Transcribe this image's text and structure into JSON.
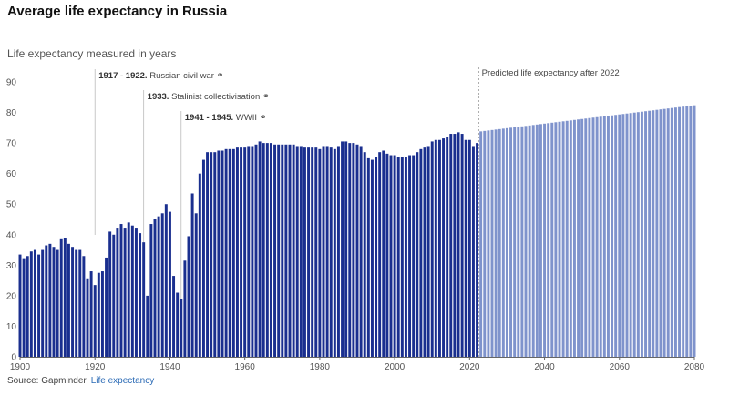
{
  "chart_data": {
    "type": "bar",
    "title": "Average life expectancy in Russia",
    "subtitle": "Life expectancy measured in years",
    "xlabel": "",
    "ylabel": "",
    "ylim": [
      0,
      90
    ],
    "xlim": [
      1900,
      2080
    ],
    "y_ticks": [
      0,
      10,
      20,
      30,
      40,
      50,
      60,
      70,
      80,
      90
    ],
    "x_ticks": [
      1900,
      1920,
      1940,
      1960,
      1980,
      2000,
      2020,
      2040,
      2060,
      2080
    ],
    "grid": false,
    "colors": {
      "historical": "#1a2f8f",
      "predicted": "#7f93cc",
      "guide": "#bbbbbb"
    },
    "series": [
      {
        "name": "",
        "x": [
          1900,
          1901,
          1902,
          1903,
          1904,
          1905,
          1906,
          1907,
          1908,
          1909,
          1910,
          1911,
          1912,
          1913,
          1914,
          1915,
          1916,
          1917,
          1918,
          1919,
          1920,
          1921,
          1922,
          1923,
          1924,
          1925,
          1926,
          1927,
          1928,
          1929,
          1930,
          1931,
          1932,
          1933,
          1934,
          1935,
          1936,
          1937,
          1938,
          1939,
          1940,
          1941,
          1942,
          1943,
          1944,
          1945,
          1946,
          1947,
          1948,
          1949,
          1950,
          1951,
          1952,
          1953,
          1954,
          1955,
          1956,
          1957,
          1958,
          1959,
          1960,
          1961,
          1962,
          1963,
          1964,
          1965,
          1966,
          1967,
          1968,
          1969,
          1970,
          1971,
          1972,
          1973,
          1974,
          1975,
          1976,
          1977,
          1978,
          1979,
          1980,
          1981,
          1982,
          1983,
          1984,
          1985,
          1986,
          1987,
          1988,
          1989,
          1990,
          1991,
          1992,
          1993,
          1994,
          1995,
          1996,
          1997,
          1998,
          1999,
          2000,
          2001,
          2002,
          2003,
          2004,
          2005,
          2006,
          2007,
          2008,
          2009,
          2010,
          2011,
          2012,
          2013,
          2014,
          2015,
          2016,
          2017,
          2018,
          2019,
          2020,
          2021,
          2022
        ],
        "values": [
          33.5,
          32,
          33,
          34.5,
          35,
          33.5,
          35,
          36.5,
          37,
          36,
          35,
          38.5,
          39,
          37,
          36,
          35,
          35,
          33,
          25.7,
          28,
          23.5,
          27.5,
          28,
          32.5,
          41,
          40,
          42,
          43.5,
          42,
          44,
          43,
          42,
          40.5,
          37.5,
          20,
          43.5,
          45,
          46,
          47,
          50,
          47.5,
          26.5,
          21,
          19,
          31.5,
          39.5,
          53.5,
          47,
          60,
          64.5,
          67,
          67,
          67,
          67.5,
          67.5,
          68,
          68,
          68,
          68.5,
          68.5,
          68.5,
          69,
          69,
          69.5,
          70.5,
          70,
          70,
          70,
          69.5,
          69.5,
          69.5,
          69.5,
          69.5,
          69.5,
          69,
          69,
          68.5,
          68.5,
          68.5,
          68.5,
          68,
          69,
          69,
          68.5,
          68,
          69,
          70.5,
          70.5,
          70,
          70,
          69.5,
          69,
          67,
          65,
          64.5,
          65.5,
          67,
          67.5,
          66.5,
          66,
          66,
          65.5,
          65.5,
          65.5,
          66,
          66,
          67,
          68,
          68.5,
          69,
          70.5,
          71,
          71,
          71.5,
          72,
          73,
          73,
          73.5,
          73,
          71,
          71,
          69,
          70
        ]
      },
      {
        "name": "Predicted life expectancy after 2022",
        "x": [
          2023,
          2024,
          2025,
          2026,
          2027,
          2028,
          2029,
          2030,
          2031,
          2032,
          2033,
          2034,
          2035,
          2036,
          2037,
          2038,
          2039,
          2040,
          2041,
          2042,
          2043,
          2044,
          2045,
          2046,
          2047,
          2048,
          2049,
          2050,
          2051,
          2052,
          2053,
          2054,
          2055,
          2056,
          2057,
          2058,
          2059,
          2060,
          2061,
          2062,
          2063,
          2064,
          2065,
          2066,
          2067,
          2068,
          2069,
          2070,
          2071,
          2072,
          2073,
          2074,
          2075,
          2076,
          2077,
          2078,
          2079,
          2080
        ],
        "values": [
          73.8,
          73.95,
          74.1,
          74.25,
          74.4,
          74.55,
          74.7,
          74.85,
          75,
          75.15,
          75.3,
          75.45,
          75.6,
          75.75,
          75.9,
          76.05,
          76.2,
          76.35,
          76.5,
          76.65,
          76.8,
          76.95,
          77.1,
          77.25,
          77.4,
          77.55,
          77.7,
          77.85,
          78,
          78.15,
          78.3,
          78.45,
          78.6,
          78.75,
          78.9,
          79.05,
          79.2,
          79.35,
          79.5,
          79.65,
          79.8,
          79.95,
          80.1,
          80.25,
          80.4,
          80.55,
          80.7,
          80.85,
          81,
          81.15,
          81.3,
          81.45,
          81.6,
          81.75,
          81.9,
          82.05,
          82.2,
          82.35
        ]
      }
    ],
    "annotations": [
      {
        "year": 1920,
        "bold": "1917 - 1922.",
        "text": "Russian civil war",
        "icon": "link-icon",
        "level": 0
      },
      {
        "year": 1933,
        "bold": "1933.",
        "text": "Stalinist collectivisation",
        "icon": "link-icon",
        "level": 1
      },
      {
        "year": 1943,
        "bold": "1941 - 1945.",
        "text": "WWII",
        "icon": "link-icon",
        "level": 2
      }
    ],
    "prediction_marker": {
      "year": 2022.5,
      "label": "Predicted life expectancy after 2022"
    }
  },
  "source": {
    "prefix": "Source: Gapminder,",
    "link_text": "Life expectancy"
  }
}
